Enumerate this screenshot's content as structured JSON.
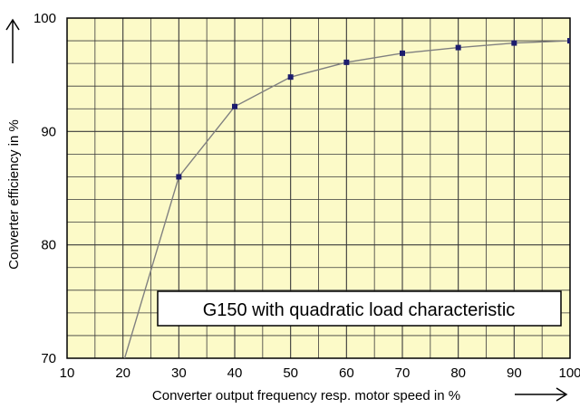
{
  "chart_data": {
    "type": "line",
    "title": "",
    "xlabel": "Converter output frequency resp. motor speed in %",
    "ylabel": "Converter efficiency in %",
    "xlim": [
      10,
      100
    ],
    "ylim": [
      70,
      100
    ],
    "x_ticks": [
      "10",
      "20",
      "30",
      "40",
      "50",
      "60",
      "70",
      "80",
      "90",
      "100"
    ],
    "y_ticks": [
      "70",
      "80",
      "90",
      "100"
    ],
    "grid": true,
    "background": "#fcfac8",
    "line_color": "#808080",
    "marker_color": "#1c1c6e",
    "series": [
      {
        "x": [
          20,
          30,
          40,
          50,
          60,
          70,
          80,
          90,
          100
        ],
        "y": [
          69.5,
          86.0,
          92.2,
          94.8,
          96.1,
          96.9,
          97.4,
          97.8,
          98.0
        ],
        "markers": [
          false,
          true,
          true,
          true,
          true,
          true,
          true,
          true,
          true
        ]
      }
    ],
    "annotation": "G150 with quadratic load characteristic"
  }
}
